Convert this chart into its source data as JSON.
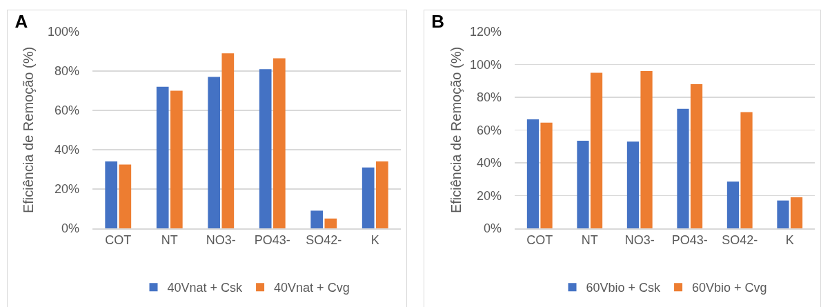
{
  "chart_data": [
    {
      "type": "bar",
      "title": "A",
      "ylabel": "Eficiência de Remoção (%)",
      "categories": [
        "COT",
        "NT",
        "NO3-",
        "PO43-",
        "SO42-",
        "K"
      ],
      "series": [
        {
          "name": "40Vnat + Csk",
          "color": "#4472c4",
          "values": [
            34,
            72,
            77,
            81,
            9,
            31
          ]
        },
        {
          "name": "40Vnat + Cvg",
          "color": "#ed7d31",
          "values": [
            32.5,
            70,
            89,
            86.5,
            5,
            34
          ]
        }
      ],
      "ylim": [
        0,
        100
      ],
      "yticks": [
        {
          "value": 0,
          "label": "0%"
        },
        {
          "value": 20,
          "label": "20%"
        },
        {
          "value": 40,
          "label": "40%"
        },
        {
          "value": 60,
          "label": "60%"
        },
        {
          "value": 80,
          "label": "80%"
        },
        {
          "value": 100,
          "label": "100%"
        }
      ],
      "grid": "y",
      "legend": "bottom"
    },
    {
      "type": "bar",
      "title": "B",
      "ylabel": "Eficiência de Remoção (%)",
      "categories": [
        "COT",
        "NT",
        "NO3-",
        "PO43-",
        "SO42-",
        "K"
      ],
      "series": [
        {
          "name": "60Vbio + Csk",
          "color": "#4472c4",
          "values": [
            66.5,
            53.5,
            53,
            73,
            28.5,
            17
          ]
        },
        {
          "name": "60Vbio + Cvg",
          "color": "#ed7d31",
          "values": [
            64.5,
            95,
            96,
            88,
            71,
            19
          ]
        }
      ],
      "ylim": [
        0,
        120
      ],
      "yticks": [
        {
          "value": 0,
          "label": "0%"
        },
        {
          "value": 20,
          "label": "20%"
        },
        {
          "value": 40,
          "label": "40%"
        },
        {
          "value": 60,
          "label": "60%"
        },
        {
          "value": 80,
          "label": "80%"
        },
        {
          "value": 100,
          "label": "100%"
        },
        {
          "value": 120,
          "label": "120%"
        }
      ],
      "grid": "y",
      "legend": "bottom"
    }
  ]
}
